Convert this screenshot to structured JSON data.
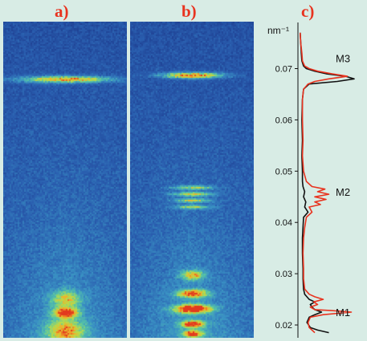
{
  "panels": {
    "a": {
      "label": "a)"
    },
    "b": {
      "label": "b)"
    },
    "c": {
      "label": "c)"
    }
  },
  "colors": {
    "background": "#d8ece5",
    "label_color": "#e8331f",
    "colormap": [
      "#1d3c8f",
      "#2a5fb0",
      "#3a92c4",
      "#56c4a6",
      "#b8dc4a",
      "#f0b02a",
      "#e23a1e"
    ]
  },
  "chart_data": {
    "type": "line",
    "orientation": "vertical-axis-q",
    "axis_unit": "nm⁻¹",
    "ylim": [
      0.0175,
      0.079
    ],
    "ticks": [
      0.02,
      0.03,
      0.04,
      0.05,
      0.06,
      0.07
    ],
    "tick_labels": [
      "0.02",
      "0.03",
      "0.04",
      "0.05",
      "0.06",
      "0.07"
    ],
    "annotations": [
      {
        "text": "M3",
        "q": 0.072
      },
      {
        "text": "M2",
        "q": 0.046
      },
      {
        "text": "M1",
        "q": 0.0225
      }
    ],
    "series": [
      {
        "color": "#111111",
        "q": [
          0.0185,
          0.019,
          0.0195,
          0.0205,
          0.0215,
          0.022,
          0.0225,
          0.023,
          0.0235,
          0.024,
          0.0245,
          0.025,
          0.026,
          0.027,
          0.029,
          0.031,
          0.034,
          0.037,
          0.039,
          0.041,
          0.042,
          0.043,
          0.044,
          0.045,
          0.046,
          0.047,
          0.048,
          0.05,
          0.053,
          0.056,
          0.06,
          0.064,
          0.066,
          0.067,
          0.0675,
          0.068,
          0.0685,
          0.069,
          0.0695,
          0.07,
          0.0705,
          0.0715,
          0.073,
          0.075,
          0.077
        ],
        "intensity": [
          0.55,
          0.35,
          0.22,
          0.16,
          0.2,
          0.3,
          0.42,
          0.3,
          0.25,
          0.22,
          0.3,
          0.2,
          0.12,
          0.1,
          0.09,
          0.09,
          0.08,
          0.08,
          0.09,
          0.1,
          0.18,
          0.12,
          0.14,
          0.1,
          0.12,
          0.09,
          0.08,
          0.08,
          0.07,
          0.08,
          0.07,
          0.08,
          0.1,
          0.2,
          0.7,
          1.0,
          0.85,
          0.5,
          0.3,
          0.15,
          0.1,
          0.07,
          0.06,
          0.05,
          0.04
        ]
      },
      {
        "color": "#e8331f",
        "q": [
          0.0185,
          0.019,
          0.0195,
          0.0205,
          0.0215,
          0.022,
          0.0225,
          0.0228,
          0.023,
          0.0235,
          0.024,
          0.0245,
          0.025,
          0.0255,
          0.026,
          0.027,
          0.029,
          0.031,
          0.034,
          0.037,
          0.039,
          0.041,
          0.042,
          0.043,
          0.0435,
          0.044,
          0.0445,
          0.045,
          0.0455,
          0.046,
          0.0465,
          0.047,
          0.048,
          0.05,
          0.053,
          0.056,
          0.06,
          0.064,
          0.066,
          0.067,
          0.0675,
          0.068,
          0.0685,
          0.069,
          0.0695,
          0.07,
          0.0705,
          0.0715,
          0.073,
          0.075,
          0.077
        ],
        "intensity": [
          0.3,
          0.25,
          0.2,
          0.18,
          0.22,
          0.45,
          0.95,
          0.6,
          0.3,
          0.22,
          0.35,
          0.28,
          0.45,
          0.3,
          0.2,
          0.12,
          0.1,
          0.1,
          0.09,
          0.1,
          0.12,
          0.15,
          0.25,
          0.2,
          0.4,
          0.3,
          0.5,
          0.3,
          0.55,
          0.35,
          0.48,
          0.25,
          0.15,
          0.1,
          0.08,
          0.09,
          0.08,
          0.08,
          0.1,
          0.18,
          0.3,
          0.55,
          0.88,
          0.6,
          0.35,
          0.2,
          0.12,
          0.08,
          0.07,
          0.05,
          0.04
        ]
      }
    ]
  }
}
